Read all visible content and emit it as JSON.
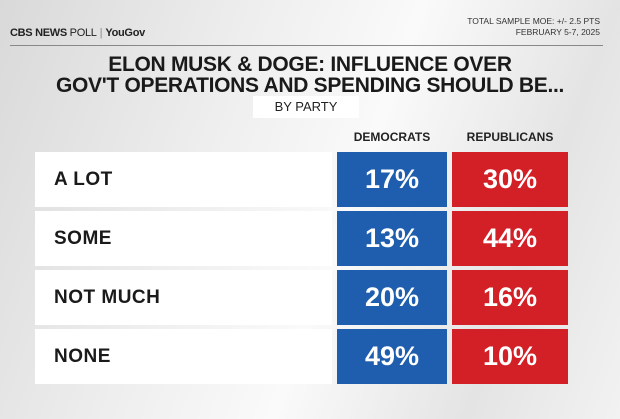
{
  "header": {
    "brand": "CBS NEWS",
    "poll": "POLL",
    "partner": "YouGov",
    "moe": "TOTAL SAMPLE MOE: +/- 2.5 PTS",
    "dates": "FEBRUARY 5-7, 2025"
  },
  "chart_data": {
    "type": "table",
    "title_line1": "ELON MUSK & DOGE: INFLUENCE OVER",
    "title_line2": "GOV'T OPERATIONS AND SPENDING SHOULD BE...",
    "subtitle": "BY PARTY",
    "columns": [
      "DEMOCRATS",
      "REPUBLICANS"
    ],
    "rows": [
      {
        "label": "A LOT",
        "values": [
          "17%",
          "30%"
        ]
      },
      {
        "label": "SOME",
        "values": [
          "13%",
          "44%"
        ]
      },
      {
        "label": "NOT MUCH",
        "values": [
          "20%",
          "16%"
        ]
      },
      {
        "label": "NONE",
        "values": [
          "49%",
          "10%"
        ]
      }
    ],
    "colors": {
      "democrats": "#1f5eae",
      "republicans": "#d31f26"
    }
  }
}
